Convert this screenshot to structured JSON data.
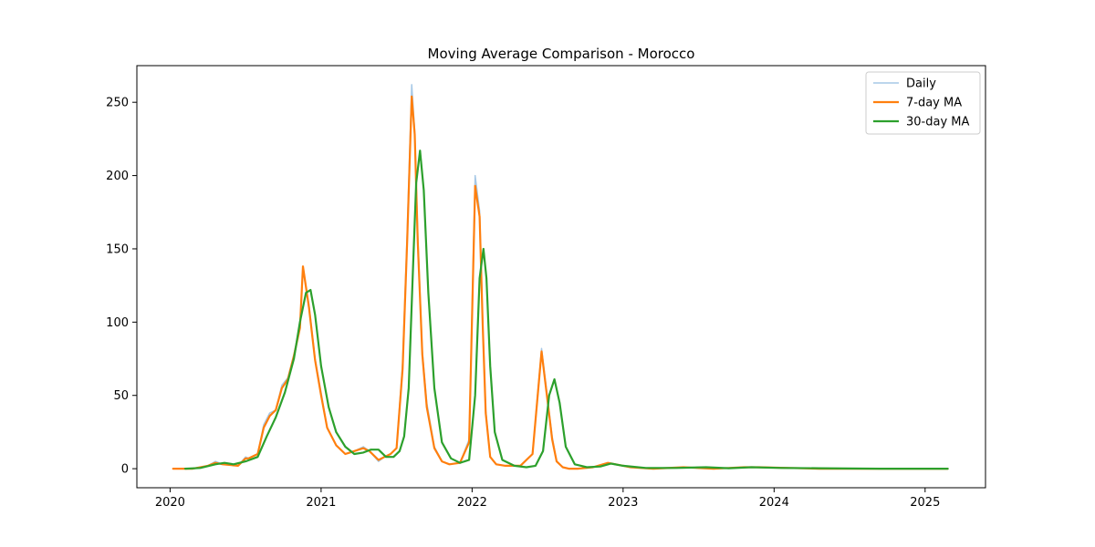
{
  "chart_data": {
    "type": "line",
    "title": "Moving Average Comparison - Morocco",
    "xlabel": "",
    "ylabel": "",
    "xlim": [
      2019.78,
      2025.4
    ],
    "ylim": [
      -13,
      275
    ],
    "x_ticks": [
      2020,
      2021,
      2022,
      2023,
      2024,
      2025
    ],
    "x_tick_labels": [
      "2020",
      "2021",
      "2022",
      "2023",
      "2024",
      "2025"
    ],
    "y_ticks": [
      0,
      50,
      100,
      150,
      200,
      250
    ],
    "y_tick_labels": [
      "0",
      "50",
      "100",
      "150",
      "200",
      "250"
    ],
    "grid": false,
    "legend_position": "top-right",
    "series": [
      {
        "name": "Daily",
        "color": "#a6c8e6",
        "x": [
          2020.02,
          2020.15,
          2020.25,
          2020.3,
          2020.35,
          2020.45,
          2020.5,
          2020.52,
          2020.58,
          2020.62,
          2020.66,
          2020.7,
          2020.74,
          2020.78,
          2020.82,
          2020.86,
          2020.88,
          2020.92,
          2020.96,
          2021.0,
          2021.04,
          2021.1,
          2021.16,
          2021.22,
          2021.28,
          2021.32,
          2021.38,
          2021.42,
          2021.46,
          2021.5,
          2021.54,
          2021.57,
          2021.6,
          2021.62,
          2021.64,
          2021.67,
          2021.7,
          2021.75,
          2021.8,
          2021.85,
          2021.92,
          2021.98,
          2022.02,
          2022.05,
          2022.07,
          2022.09,
          2022.12,
          2022.16,
          2022.22,
          2022.32,
          2022.4,
          2022.46,
          2022.5,
          2022.53,
          2022.56,
          2022.6,
          2022.64,
          2022.7,
          2022.8,
          2022.9,
          2022.95,
          2023.05,
          2023.2,
          2023.4,
          2023.6,
          2023.7,
          2023.8,
          2023.9,
          2024.1,
          2024.3,
          2024.6,
          2025.0,
          2025.15
        ],
        "values": [
          0,
          0,
          2,
          5,
          3,
          2,
          8,
          7,
          10,
          30,
          38,
          40,
          57,
          62,
          78,
          98,
          136,
          112,
          75,
          52,
          28,
          16,
          10,
          12,
          15,
          12,
          5,
          8,
          10,
          14,
          72,
          160,
          262,
          230,
          160,
          80,
          45,
          15,
          5,
          3,
          4,
          20,
          200,
          176,
          100,
          40,
          8,
          3,
          2,
          2,
          10,
          82,
          48,
          22,
          5,
          1,
          0,
          0,
          1,
          4,
          3,
          1,
          0,
          1,
          0,
          0.5,
          1,
          1,
          0.5,
          0,
          0,
          0,
          0
        ]
      },
      {
        "name": "7-day MA",
        "color": "#ff7f0e",
        "x": [
          2020.02,
          2020.15,
          2020.25,
          2020.3,
          2020.35,
          2020.45,
          2020.5,
          2020.52,
          2020.58,
          2020.62,
          2020.66,
          2020.7,
          2020.74,
          2020.78,
          2020.82,
          2020.86,
          2020.88,
          2020.92,
          2020.96,
          2021.0,
          2021.04,
          2021.1,
          2021.16,
          2021.22,
          2021.28,
          2021.32,
          2021.38,
          2021.42,
          2021.46,
          2021.5,
          2021.54,
          2021.57,
          2021.6,
          2021.62,
          2021.64,
          2021.67,
          2021.7,
          2021.75,
          2021.8,
          2021.85,
          2021.92,
          2021.98,
          2022.02,
          2022.05,
          2022.07,
          2022.09,
          2022.12,
          2022.16,
          2022.22,
          2022.32,
          2022.4,
          2022.46,
          2022.5,
          2022.53,
          2022.56,
          2022.6,
          2022.64,
          2022.7,
          2022.8,
          2022.9,
          2022.95,
          2023.05,
          2023.2,
          2023.4,
          2023.6,
          2023.7,
          2023.8,
          2023.9,
          2024.1,
          2024.3,
          2024.6,
          2025.0,
          2025.15
        ],
        "values": [
          0,
          0,
          2,
          4,
          3,
          2,
          7,
          7,
          10,
          28,
          36,
          40,
          55,
          61,
          77,
          96,
          138,
          110,
          74,
          50,
          28,
          16,
          10,
          12,
          14,
          12,
          6,
          8,
          10,
          14,
          68,
          155,
          254,
          228,
          155,
          78,
          42,
          14,
          5,
          3,
          4,
          18,
          193,
          172,
          98,
          38,
          8,
          3,
          2,
          2,
          10,
          80,
          46,
          20,
          5,
          1,
          0,
          0,
          1,
          4,
          3,
          1,
          0,
          1,
          0,
          0.5,
          1,
          1,
          0.5,
          0,
          0,
          0,
          0
        ]
      },
      {
        "name": "30-day MA",
        "color": "#2ca02c",
        "x": [
          2020.1,
          2020.2,
          2020.3,
          2020.36,
          2020.42,
          2020.5,
          2020.58,
          2020.64,
          2020.7,
          2020.76,
          2020.82,
          2020.86,
          2020.9,
          2020.93,
          2020.96,
          2021.0,
          2021.05,
          2021.1,
          2021.16,
          2021.22,
          2021.28,
          2021.33,
          2021.38,
          2021.43,
          2021.48,
          2021.52,
          2021.55,
          2021.58,
          2021.61,
          2021.63,
          2021.655,
          2021.68,
          2021.71,
          2021.75,
          2021.8,
          2021.86,
          2021.92,
          2021.98,
          2022.02,
          2022.05,
          2022.075,
          2022.095,
          2022.12,
          2022.15,
          2022.2,
          2022.28,
          2022.36,
          2022.42,
          2022.47,
          2022.51,
          2022.545,
          2022.58,
          2022.62,
          2022.68,
          2022.76,
          2022.85,
          2022.92,
          2023.0,
          2023.15,
          2023.35,
          2023.55,
          2023.7,
          2023.85,
          2024.05,
          2024.3,
          2024.7,
          2025.15
        ],
        "values": [
          0,
          0.5,
          3,
          4,
          3,
          5,
          8,
          22,
          35,
          52,
          75,
          100,
          120,
          122,
          105,
          70,
          42,
          25,
          15,
          10,
          11,
          13,
          13,
          8,
          8,
          12,
          22,
          55,
          140,
          195,
          217,
          190,
          120,
          55,
          18,
          7,
          4,
          6,
          50,
          130,
          150,
          130,
          70,
          25,
          6,
          2,
          1,
          2,
          12,
          50,
          61,
          45,
          15,
          3,
          1,
          1.5,
          3.5,
          2,
          0.5,
          0.5,
          1,
          0.3,
          1,
          0.5,
          0.3,
          0,
          0
        ]
      }
    ]
  }
}
